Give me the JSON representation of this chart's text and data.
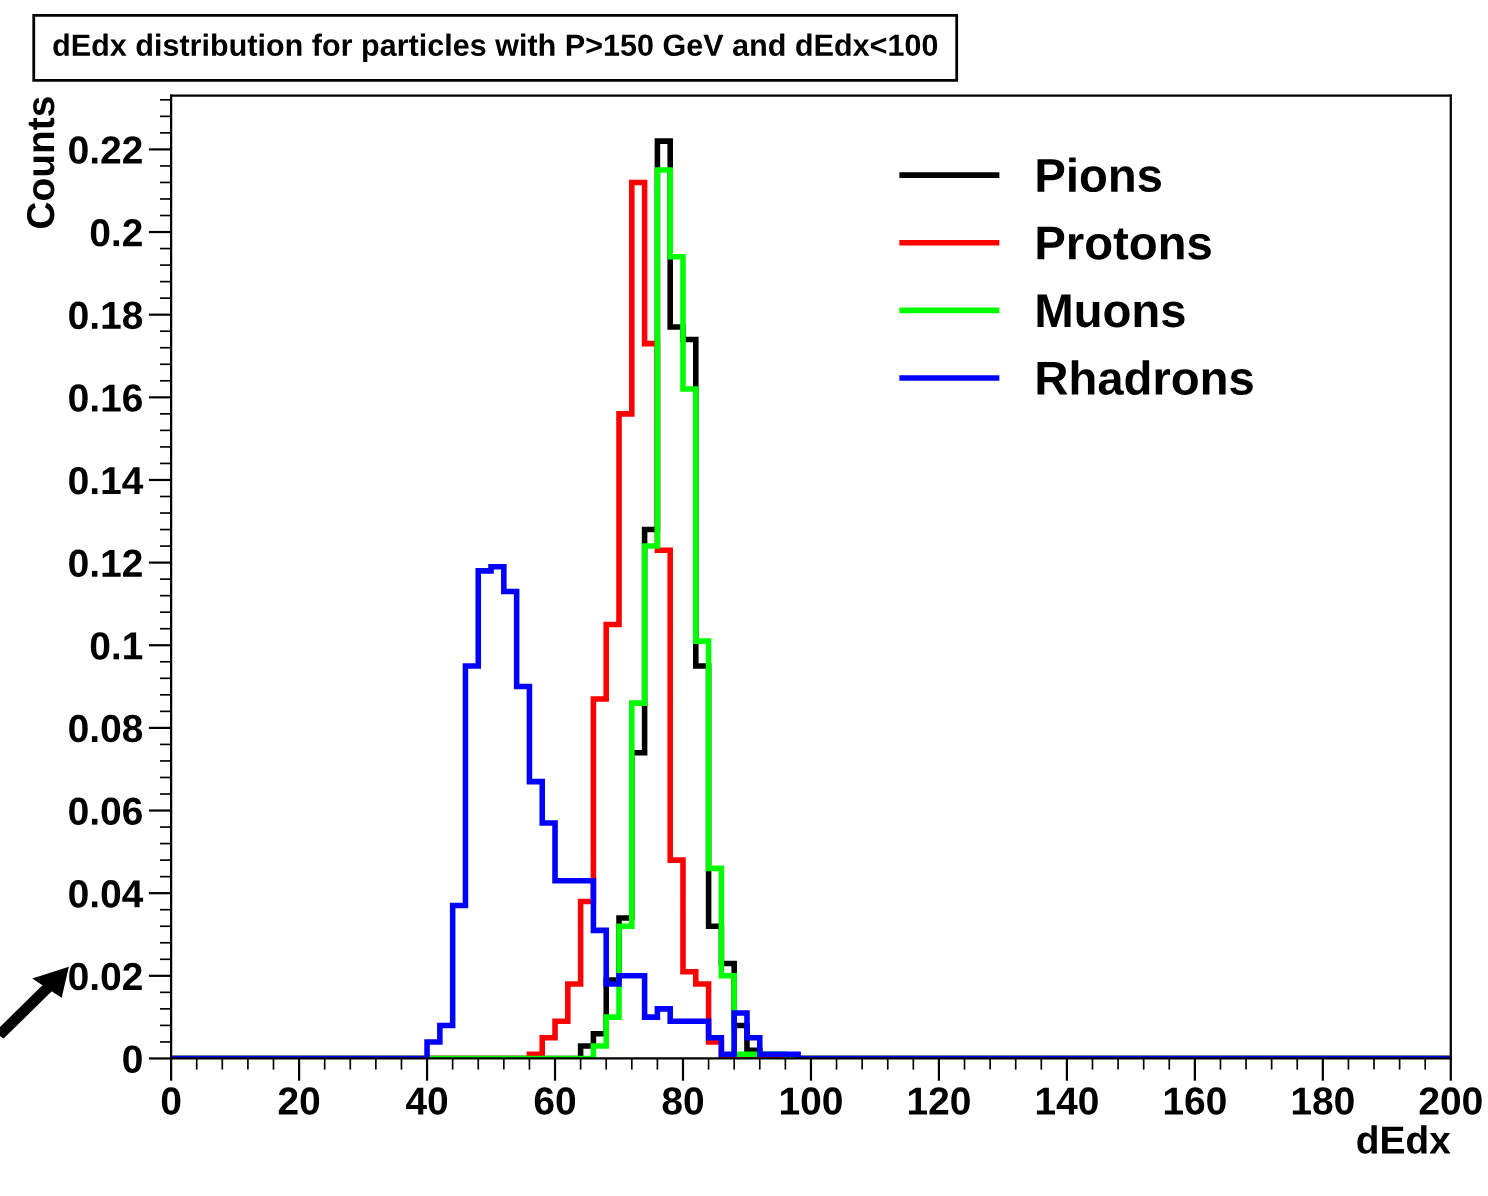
{
  "chart_data": {
    "type": "histogram",
    "title": "dEdx distribution for particles with P>150 GeV and dEdx<100",
    "xlabel": "dEdx",
    "ylabel": "Counts",
    "bins": [
      0,
      2,
      4,
      6,
      8,
      10,
      12,
      14,
      16,
      18,
      20,
      22,
      24,
      26,
      28,
      30,
      32,
      34,
      36,
      38,
      40,
      42,
      44,
      46,
      48,
      50,
      52,
      54,
      56,
      58,
      60,
      62,
      64,
      66,
      68,
      70,
      72,
      74,
      76,
      78,
      80,
      82,
      84,
      86,
      88,
      90,
      92,
      94,
      96,
      98,
      100,
      102,
      104,
      106,
      108,
      110,
      112,
      114,
      116,
      118,
      120,
      122,
      124,
      126,
      128,
      130,
      132,
      134,
      136,
      138,
      140,
      142,
      144,
      146,
      148,
      150,
      152,
      154,
      156,
      158,
      160,
      162,
      164,
      166,
      168,
      170,
      172,
      174,
      176,
      178,
      180,
      182,
      184,
      186,
      188,
      190,
      192,
      194,
      196,
      198,
      200
    ],
    "series": [
      {
        "name": "Pions",
        "color": "#000000",
        "values": [
          0,
          0,
          0,
          0,
          0,
          0,
          0,
          0,
          0,
          0,
          0,
          0,
          0,
          0,
          0,
          0,
          0,
          0,
          0,
          0,
          0,
          0,
          0,
          0,
          0,
          0,
          0,
          0,
          0,
          0,
          0,
          0,
          0.003,
          0.006,
          0.019,
          0.034,
          0.074,
          0.128,
          0.222,
          0.177,
          0.174,
          0.095,
          0.032,
          0.023,
          0.008,
          0.002,
          0,
          0,
          0,
          0,
          0,
          0,
          0,
          0,
          0,
          0,
          0,
          0,
          0,
          0,
          0,
          0,
          0,
          0,
          0,
          0,
          0,
          0,
          0,
          0,
          0,
          0,
          0,
          0,
          0,
          0,
          0,
          0,
          0,
          0,
          0,
          0,
          0,
          0,
          0,
          0,
          0,
          0,
          0,
          0,
          0,
          0,
          0,
          0,
          0,
          0,
          0,
          0,
          0,
          0
        ]
      },
      {
        "name": "Protons",
        "color": "#ff0000",
        "values": [
          0,
          0,
          0,
          0,
          0,
          0,
          0,
          0,
          0,
          0,
          0,
          0,
          0,
          0,
          0,
          0,
          0,
          0,
          0,
          0,
          0,
          0,
          0,
          0,
          0,
          0,
          0,
          0,
          0.001,
          0.005,
          0.009,
          0.018,
          0.038,
          0.087,
          0.105,
          0.156,
          0.212,
          0.173,
          0.123,
          0.048,
          0.021,
          0.018,
          0.004,
          0,
          0,
          0,
          0,
          0,
          0,
          0,
          0,
          0,
          0,
          0,
          0,
          0,
          0,
          0,
          0,
          0,
          0,
          0,
          0,
          0,
          0,
          0,
          0,
          0,
          0,
          0,
          0,
          0,
          0,
          0,
          0,
          0,
          0,
          0,
          0,
          0,
          0,
          0,
          0,
          0,
          0,
          0,
          0,
          0,
          0,
          0,
          0,
          0,
          0,
          0,
          0,
          0,
          0,
          0,
          0,
          0
        ]
      },
      {
        "name": "Muons",
        "color": "#00ff00",
        "values": [
          0,
          0,
          0,
          0,
          0,
          0,
          0,
          0,
          0,
          0,
          0,
          0,
          0,
          0,
          0,
          0,
          0,
          0,
          0,
          0,
          0,
          0,
          0,
          0,
          0,
          0,
          0,
          0,
          0,
          0,
          0,
          0,
          0,
          0.003,
          0.01,
          0.032,
          0.086,
          0.124,
          0.215,
          0.194,
          0.162,
          0.101,
          0.046,
          0.02,
          0.001,
          0.001,
          0.001,
          0.001,
          0,
          0,
          0,
          0,
          0,
          0,
          0,
          0,
          0,
          0,
          0,
          0,
          0,
          0,
          0,
          0,
          0,
          0,
          0,
          0,
          0,
          0,
          0,
          0,
          0,
          0,
          0,
          0,
          0,
          0,
          0,
          0,
          0,
          0,
          0,
          0,
          0,
          0,
          0,
          0,
          0,
          0,
          0,
          0,
          0,
          0,
          0,
          0,
          0,
          0,
          0,
          0
        ]
      },
      {
        "name": "Rhadrons",
        "color": "#0000ff",
        "values": [
          0,
          0,
          0,
          0,
          0,
          0,
          0,
          0,
          0,
          0,
          0,
          0,
          0,
          0,
          0,
          0,
          0,
          0,
          0,
          0,
          0.004,
          0.008,
          0.037,
          0.095,
          0.118,
          0.119,
          0.113,
          0.09,
          0.067,
          0.057,
          0.043,
          0.043,
          0.043,
          0.031,
          0.018,
          0.02,
          0.02,
          0.01,
          0.012,
          0.009,
          0.009,
          0.009,
          0.005,
          0.001,
          0.011,
          0.005,
          0.001,
          0.001,
          0.001,
          0,
          0,
          0,
          0,
          0,
          0,
          0,
          0,
          0,
          0,
          0,
          0,
          0,
          0,
          0,
          0,
          0,
          0,
          0,
          0,
          0,
          0,
          0,
          0,
          0,
          0,
          0,
          0,
          0,
          0,
          0,
          0,
          0,
          0,
          0,
          0,
          0,
          0,
          0,
          0,
          0,
          0,
          0,
          0,
          0,
          0,
          0,
          0,
          0,
          0,
          0
        ]
      }
    ],
    "xlim": [
      0,
      200
    ],
    "ylim": [
      0,
      0.233
    ],
    "xticks": [
      0,
      20,
      40,
      60,
      80,
      100,
      120,
      140,
      160,
      180,
      200
    ],
    "yticks": [
      0,
      0.02,
      0.04,
      0.06,
      0.08,
      0.1,
      0.12,
      0.14,
      0.16,
      0.18,
      0.2,
      0.22
    ],
    "legend": "top right"
  }
}
